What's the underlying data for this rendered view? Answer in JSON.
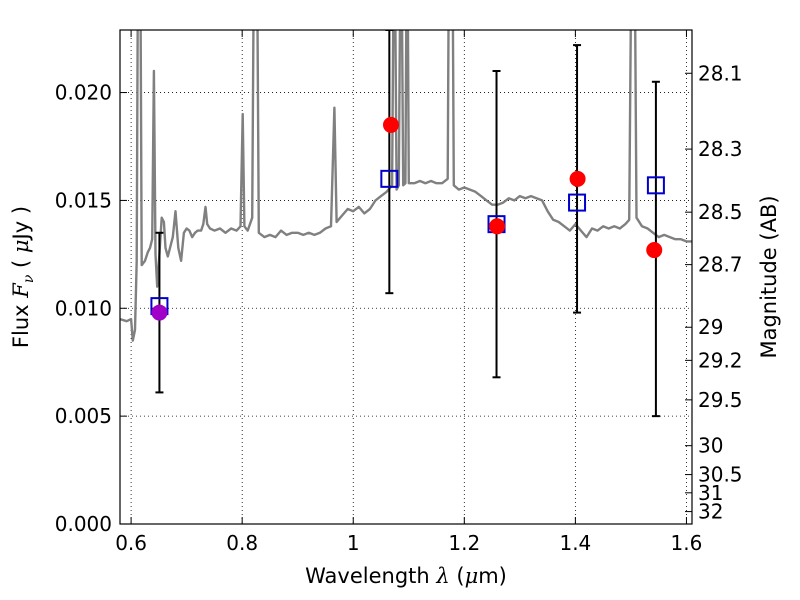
{
  "chart_data": {
    "type": "scatter",
    "title": "",
    "xlabel": {
      "prefix": "Wavelength  ",
      "symbol": "λ",
      "suffix": " (",
      "mu": "μ",
      "unit": "m)"
    },
    "ylabel": {
      "prefix": "Flux  ",
      "symbol": "F",
      "sub": "ν",
      "suffix": "  ( ",
      "mu": "μ",
      "unit": "Jy )"
    },
    "y2label": "Magnitude (AB)",
    "xlim": [
      0.58,
      1.61
    ],
    "ylim": [
      0.0,
      0.0229
    ],
    "grid": true,
    "x_ticks": [
      {
        "value": 0.6,
        "label": "0.6"
      },
      {
        "value": 0.8,
        "label": "0.8"
      },
      {
        "value": 1.0,
        "label": "1"
      },
      {
        "value": 1.2,
        "label": "1.2"
      },
      {
        "value": 1.4,
        "label": "1.4"
      },
      {
        "value": 1.6,
        "label": "1.6"
      }
    ],
    "y_ticks": [
      {
        "value": 0.0,
        "label": "0.000"
      },
      {
        "value": 0.005,
        "label": "0.005"
      },
      {
        "value": 0.01,
        "label": "0.010"
      },
      {
        "value": 0.015,
        "label": "0.015"
      },
      {
        "value": 0.02,
        "label": "0.020"
      }
    ],
    "y2_ticks": [
      {
        "value": 28.1,
        "label": "28.1"
      },
      {
        "value": 28.3,
        "label": "28.3"
      },
      {
        "value": 28.5,
        "label": "28.5"
      },
      {
        "value": 28.7,
        "label": "28.7"
      },
      {
        "value": 29.0,
        "label": "29"
      },
      {
        "value": 29.2,
        "label": "29.2"
      },
      {
        "value": 29.5,
        "label": "29.5"
      },
      {
        "value": 30.0,
        "label": "30"
      },
      {
        "value": 30.5,
        "label": "30.5"
      },
      {
        "value": 31.0,
        "label": "31"
      },
      {
        "value": 32.0,
        "label": "32"
      }
    ],
    "model_spectrum": {
      "color": "#808080",
      "points": [
        [
          0.58,
          0.0095
        ],
        [
          0.592,
          0.0094
        ],
        [
          0.6,
          0.0095
        ],
        [
          0.603,
          0.0085
        ],
        [
          0.607,
          0.009
        ],
        [
          0.61,
          0.0122
        ],
        [
          0.613,
          0.03
        ],
        [
          0.616,
          0.03
        ],
        [
          0.619,
          0.012
        ],
        [
          0.625,
          0.0122
        ],
        [
          0.63,
          0.0126
        ],
        [
          0.634,
          0.0128
        ],
        [
          0.638,
          0.0132
        ],
        [
          0.641,
          0.021
        ],
        [
          0.644,
          0.0125
        ],
        [
          0.647,
          0.011
        ],
        [
          0.651,
          0.0125
        ],
        [
          0.655,
          0.0142
        ],
        [
          0.659,
          0.014
        ],
        [
          0.662,
          0.0128
        ],
        [
          0.666,
          0.0124
        ],
        [
          0.67,
          0.0128
        ],
        [
          0.675,
          0.0133
        ],
        [
          0.68,
          0.0145
        ],
        [
          0.685,
          0.0128
        ],
        [
          0.69,
          0.0122
        ],
        [
          0.695,
          0.0135
        ],
        [
          0.7,
          0.0137
        ],
        [
          0.705,
          0.0136
        ],
        [
          0.71,
          0.0133
        ],
        [
          0.715,
          0.0135
        ],
        [
          0.72,
          0.0136
        ],
        [
          0.726,
          0.0136
        ],
        [
          0.73,
          0.0139
        ],
        [
          0.734,
          0.0147
        ],
        [
          0.737,
          0.0139
        ],
        [
          0.742,
          0.0137
        ],
        [
          0.75,
          0.0136
        ],
        [
          0.76,
          0.0137
        ],
        [
          0.77,
          0.0135
        ],
        [
          0.78,
          0.0137
        ],
        [
          0.79,
          0.0136
        ],
        [
          0.797,
          0.0138
        ],
        [
          0.801,
          0.019
        ],
        [
          0.804,
          0.0138
        ],
        [
          0.81,
          0.0136
        ],
        [
          0.818,
          0.0142
        ],
        [
          0.822,
          0.03
        ],
        [
          0.826,
          0.03
        ],
        [
          0.83,
          0.0135
        ],
        [
          0.84,
          0.0133
        ],
        [
          0.85,
          0.0134
        ],
        [
          0.86,
          0.0133
        ],
        [
          0.87,
          0.0136
        ],
        [
          0.88,
          0.0134
        ],
        [
          0.89,
          0.0135
        ],
        [
          0.9,
          0.0135
        ],
        [
          0.91,
          0.0134
        ],
        [
          0.92,
          0.0135
        ],
        [
          0.93,
          0.0134
        ],
        [
          0.94,
          0.0135
        ],
        [
          0.95,
          0.0137
        ],
        [
          0.96,
          0.0138
        ],
        [
          0.966,
          0.0193
        ],
        [
          0.97,
          0.014
        ],
        [
          0.98,
          0.0143
        ],
        [
          0.99,
          0.0146
        ],
        [
          1.0,
          0.0145
        ],
        [
          1.01,
          0.0147
        ],
        [
          1.02,
          0.0144
        ],
        [
          1.03,
          0.0146
        ],
        [
          1.04,
          0.015
        ],
        [
          1.05,
          0.0152
        ],
        [
          1.06,
          0.0154
        ],
        [
          1.07,
          0.0157
        ],
        [
          1.074,
          0.03
        ],
        [
          1.078,
          0.0155
        ],
        [
          1.082,
          0.0157
        ],
        [
          1.086,
          0.03
        ],
        [
          1.09,
          0.0157
        ],
        [
          1.094,
          0.0158
        ],
        [
          1.097,
          0.03
        ],
        [
          1.1,
          0.0158
        ],
        [
          1.11,
          0.0158
        ],
        [
          1.12,
          0.0159
        ],
        [
          1.13,
          0.0158
        ],
        [
          1.14,
          0.0159
        ],
        [
          1.15,
          0.0158
        ],
        [
          1.16,
          0.0158
        ],
        [
          1.17,
          0.016
        ],
        [
          1.173,
          0.03
        ],
        [
          1.178,
          0.03
        ],
        [
          1.181,
          0.0157
        ],
        [
          1.19,
          0.0155
        ],
        [
          1.2,
          0.0156
        ],
        [
          1.21,
          0.0155
        ],
        [
          1.22,
          0.0154
        ],
        [
          1.23,
          0.0152
        ],
        [
          1.24,
          0.015
        ],
        [
          1.25,
          0.0148
        ],
        [
          1.26,
          0.0148
        ],
        [
          1.27,
          0.0149
        ],
        [
          1.28,
          0.0151
        ],
        [
          1.29,
          0.015
        ],
        [
          1.3,
          0.0152
        ],
        [
          1.31,
          0.0151
        ],
        [
          1.32,
          0.0152
        ],
        [
          1.33,
          0.0151
        ],
        [
          1.34,
          0.015
        ],
        [
          1.35,
          0.0145
        ],
        [
          1.36,
          0.0141
        ],
        [
          1.37,
          0.014
        ],
        [
          1.38,
          0.0138
        ],
        [
          1.39,
          0.0136
        ],
        [
          1.4,
          0.0139
        ],
        [
          1.41,
          0.0136
        ],
        [
          1.42,
          0.0133
        ],
        [
          1.43,
          0.0137
        ],
        [
          1.44,
          0.0136
        ],
        [
          1.45,
          0.0138
        ],
        [
          1.46,
          0.0137
        ],
        [
          1.47,
          0.0138
        ],
        [
          1.48,
          0.0137
        ],
        [
          1.49,
          0.0139
        ],
        [
          1.497,
          0.0141
        ],
        [
          1.502,
          0.03
        ],
        [
          1.506,
          0.03
        ],
        [
          1.51,
          0.0142
        ],
        [
          1.52,
          0.0138
        ],
        [
          1.53,
          0.0137
        ],
        [
          1.54,
          0.0135
        ],
        [
          1.55,
          0.0133
        ],
        [
          1.56,
          0.0134
        ],
        [
          1.57,
          0.0133
        ],
        [
          1.58,
          0.0132
        ],
        [
          1.59,
          0.0132
        ],
        [
          1.6,
          0.0131
        ],
        [
          1.61,
          0.0131
        ]
      ]
    },
    "series": [
      {
        "marker": "square",
        "color": "#0000cc",
        "points": [
          [
            0.651,
            0.0101
          ],
          [
            1.065,
            0.016
          ],
          [
            1.258,
            0.0139
          ],
          [
            1.403,
            0.0149
          ],
          [
            1.545,
            0.0157
          ]
        ]
      },
      {
        "marker": "circle",
        "color": "#ff0000",
        "points": [
          [
            1.068,
            0.0185
          ],
          [
            1.259,
            0.0138
          ],
          [
            1.404,
            0.016
          ],
          [
            1.542,
            0.0127
          ]
        ]
      },
      {
        "marker": "circle",
        "color": "#a000c8",
        "points": [
          [
            0.651,
            0.0098
          ]
        ]
      }
    ],
    "error_bars": [
      {
        "x": 0.651,
        "low": 0.0061,
        "high": 0.0135
      },
      {
        "x": 1.065,
        "low": 0.0107,
        "high": 0.0229
      },
      {
        "x": 1.258,
        "low": 0.0068,
        "high": 0.021
      },
      {
        "x": 1.403,
        "low": 0.0098,
        "high": 0.0222
      },
      {
        "x": 1.545,
        "low": 0.005,
        "high": 0.0205
      }
    ]
  }
}
